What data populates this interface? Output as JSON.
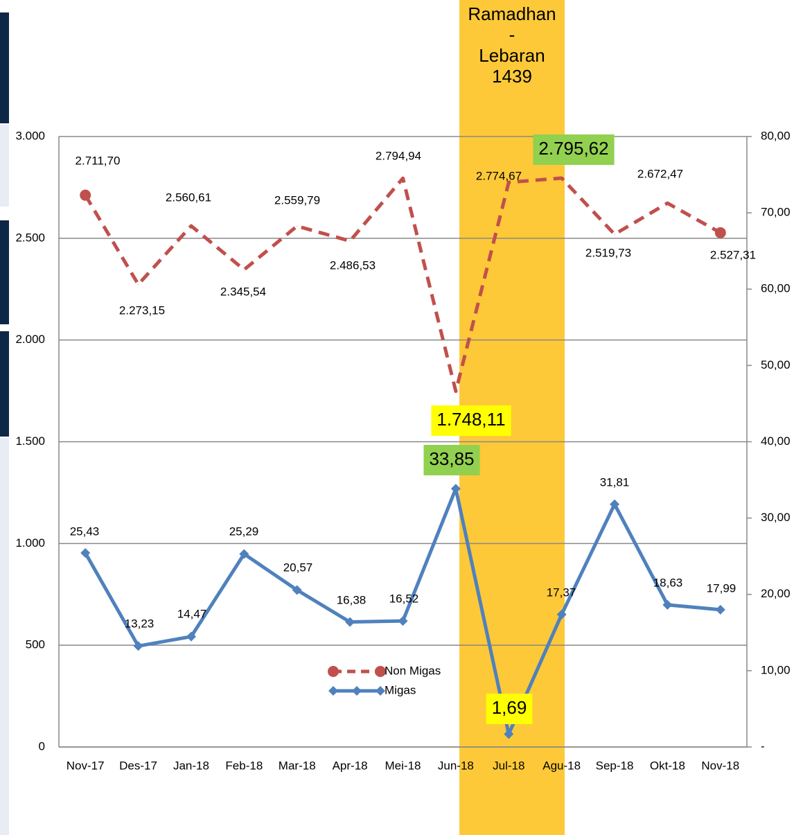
{
  "chart_data": {
    "type": "line",
    "annotation_lines": [
      "Ramadhan",
      "-",
      "Lebaran",
      "1439"
    ],
    "categories": [
      "Nov-17",
      "Des-17",
      "Jan-18",
      "Feb-18",
      "Mar-18",
      "Apr-18",
      "Mei-18",
      "Jun-18",
      "Jul-18",
      "Agu-18",
      "Sep-18",
      "Okt-18",
      "Nov-18"
    ],
    "series": [
      {
        "name": "Non Migas",
        "color": "#c0504d",
        "dash": true,
        "marker": "circle",
        "values": [
          2711.7,
          2273.15,
          2560.61,
          2345.54,
          2559.79,
          2486.53,
          2794.94,
          1748.11,
          2774.67,
          2795.62,
          2519.73,
          2672.47,
          2527.31
        ],
        "value_labels": [
          "2.711,70",
          "2.273,15",
          "2.560,61",
          "2.345,54",
          "2.559,79",
          "2.486,53",
          "2.794,94",
          "1.748,11",
          "2.774,67",
          "2.795,62",
          "2.519,73",
          "2.672,47",
          "2.527,31"
        ]
      },
      {
        "name": "Migas",
        "color": "#4f81bd",
        "dash": false,
        "marker": "diamond",
        "axis": "y2",
        "values": [
          25.43,
          13.23,
          14.47,
          25.29,
          20.57,
          16.38,
          16.52,
          33.85,
          1.69,
          17.37,
          31.81,
          18.63,
          17.99
        ],
        "value_labels": [
          "25,43",
          "13,23",
          "14,47",
          "25,29",
          "20,57",
          "16,38",
          "16,52",
          "33,85",
          "1,69",
          "17,37",
          "31,81",
          "18,63",
          "17,99"
        ]
      }
    ],
    "ylim": [
      0,
      3000
    ],
    "yticks": [
      0,
      500,
      {
        "value": 1000,
        "label": "1.000"
      },
      {
        "value": 1500,
        "label": "1.500"
      },
      {
        "value": 2000,
        "label": "2.000"
      },
      {
        "value": 2500,
        "label": "2.500"
      },
      {
        "value": 3000,
        "label": "3.000"
      }
    ],
    "y2lim": [
      0,
      80
    ],
    "y2ticks": [
      {
        "value": 0,
        "label": "-"
      },
      {
        "value": 10,
        "label": "10,00"
      },
      {
        "value": 20,
        "label": "20,00"
      },
      {
        "value": 30,
        "label": "30,00"
      },
      {
        "value": 40,
        "label": "40,00"
      },
      {
        "value": 50,
        "label": "50,00"
      },
      {
        "value": 60,
        "label": "60,00"
      },
      {
        "value": 70,
        "label": "70,00"
      },
      {
        "value": 80,
        "label": "80,00"
      }
    ],
    "grid": true
  }
}
